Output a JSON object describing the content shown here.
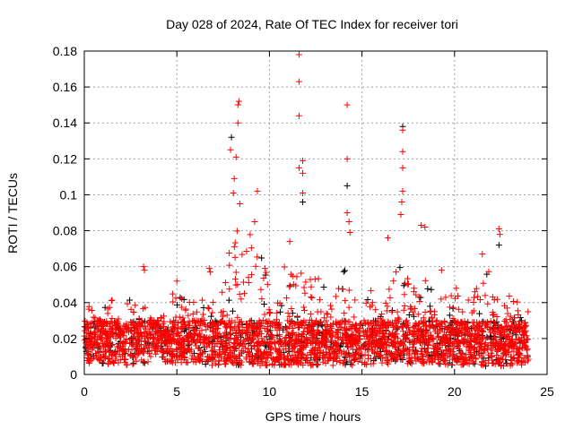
{
  "chart_data": {
    "type": "scatter",
    "title": "Day 028 of 2024, Rate Of TEC Index for receiver tori",
    "xlabel": "GPS time / hours",
    "ylabel": "ROTI / TECUs",
    "xlim": [
      0,
      25
    ],
    "ylim": [
      0,
      0.18
    ],
    "xticks": [
      "0",
      "5",
      "10",
      "15",
      "20",
      "25"
    ],
    "xtick_values": [
      0,
      5,
      10,
      15,
      20,
      25
    ],
    "yticks": [
      "0",
      "0.02",
      "0.04",
      "0.06",
      "0.08",
      "0.1",
      "0.12",
      "0.14",
      "0.16",
      "0.18"
    ],
    "ytick_values": [
      0,
      0.02,
      0.04,
      0.06,
      0.08,
      0.1,
      0.12,
      0.14,
      0.16,
      0.18
    ],
    "grid": true,
    "marker": "plus",
    "series_colors": [
      "#000000",
      "#ff0000"
    ],
    "dense_band": {
      "hours": [
        0,
        1,
        2,
        3,
        4,
        5,
        6,
        7,
        8,
        9,
        10,
        11,
        12,
        13,
        14,
        15,
        16,
        17,
        18,
        19,
        20,
        21,
        22,
        23,
        24
      ],
      "lower": [
        0.006,
        0.006,
        0.005,
        0.006,
        0.007,
        0.006,
        0.006,
        0.005,
        0.005,
        0.005,
        0.005,
        0.005,
        0.005,
        0.005,
        0.005,
        0.005,
        0.006,
        0.005,
        0.006,
        0.006,
        0.005,
        0.006,
        0.004,
        0.004,
        0.006
      ],
      "upper": [
        0.04,
        0.045,
        0.04,
        0.045,
        0.03,
        0.05,
        0.04,
        0.045,
        0.08,
        0.08,
        0.06,
        0.065,
        0.06,
        0.05,
        0.06,
        0.055,
        0.045,
        0.065,
        0.06,
        0.045,
        0.045,
        0.045,
        0.06,
        0.045,
        0.035
      ]
    },
    "peaks": [
      [
        11.6,
        0.178,
        1
      ],
      [
        11.6,
        0.163,
        1
      ],
      [
        11.6,
        0.144,
        1
      ],
      [
        11.6,
        0.115,
        1
      ],
      [
        11.8,
        0.119,
        1
      ],
      [
        11.8,
        0.112,
        1
      ],
      [
        11.8,
        0.101,
        1
      ],
      [
        11.8,
        0.096,
        0
      ],
      [
        8.35,
        0.152,
        1
      ],
      [
        8.3,
        0.15,
        1
      ],
      [
        8.3,
        0.14,
        1
      ],
      [
        7.95,
        0.132,
        0
      ],
      [
        7.9,
        0.125,
        1
      ],
      [
        8.2,
        0.121,
        1
      ],
      [
        8.1,
        0.109,
        1
      ],
      [
        8.05,
        0.101,
        1
      ],
      [
        9.35,
        0.102,
        1
      ],
      [
        8.4,
        0.095,
        1
      ],
      [
        9.2,
        0.085,
        1
      ],
      [
        14.2,
        0.15,
        1
      ],
      [
        14.2,
        0.12,
        1
      ],
      [
        14.2,
        0.105,
        0
      ],
      [
        14.2,
        0.09,
        1
      ],
      [
        14.3,
        0.085,
        1
      ],
      [
        14.35,
        0.079,
        1
      ],
      [
        17.2,
        0.138,
        0
      ],
      [
        17.2,
        0.136,
        1
      ],
      [
        17.2,
        0.124,
        1
      ],
      [
        17.2,
        0.115,
        1
      ],
      [
        17.2,
        0.102,
        1
      ],
      [
        17.15,
        0.096,
        1
      ],
      [
        17.1,
        0.089,
        1
      ],
      [
        3.2,
        0.06,
        1
      ],
      [
        3.25,
        0.058,
        1
      ],
      [
        6.75,
        0.059,
        1
      ],
      [
        6.8,
        0.057,
        1
      ],
      [
        22.4,
        0.081,
        1
      ],
      [
        22.45,
        0.078,
        1
      ],
      [
        22.4,
        0.072,
        0
      ],
      [
        16.4,
        0.076,
        1
      ],
      [
        18.2,
        0.083,
        1
      ],
      [
        18.4,
        0.082,
        1
      ],
      [
        11.1,
        0.074,
        1
      ],
      [
        21.5,
        0.067,
        1
      ],
      [
        5.0,
        0.052,
        1
      ],
      [
        19.3,
        0.058,
        1
      ],
      [
        20.1,
        0.048,
        1
      ],
      [
        21.1,
        0.046,
        1
      ]
    ]
  }
}
